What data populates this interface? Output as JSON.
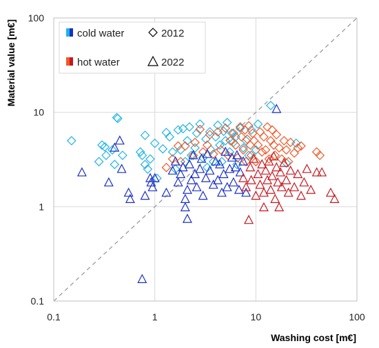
{
  "chart_data": {
    "type": "scatter",
    "title": "",
    "xlabel": "Washing cost [m€]",
    "ylabel": "Material value [m€]",
    "x_scale": "log",
    "y_scale": "log",
    "xlim": [
      0.1,
      100
    ],
    "ylim": [
      0.1,
      100
    ],
    "x_ticks": [
      "0.1",
      "1",
      "10",
      "100"
    ],
    "y_ticks": [
      "0.1",
      "1",
      "10",
      "100"
    ],
    "grid": true,
    "reference_line": "y = x (dashed, grey)",
    "legend_position": "top-left",
    "legend": {
      "color_entries": [
        {
          "label": "cold water",
          "colors": [
            "#1fb4e6",
            "#1a2fc8"
          ]
        },
        {
          "label": "hot water",
          "colors": [
            "#f05a28",
            "#c8161e"
          ]
        }
      ],
      "marker_entries": [
        {
          "label": "2012",
          "marker": "diamond"
        },
        {
          "label": "2022",
          "marker": "triangle"
        }
      ]
    },
    "series": [
      {
        "group": "cold water",
        "year": "2012",
        "marker": "diamond",
        "color": "#1fb4e6",
        "points": [
          [
            0.15,
            5.0
          ],
          [
            0.28,
            3.0
          ],
          [
            0.3,
            4.5
          ],
          [
            0.32,
            4.3
          ],
          [
            0.33,
            3.5
          ],
          [
            0.38,
            4.0
          ],
          [
            0.4,
            2.8
          ],
          [
            0.42,
            8.8
          ],
          [
            0.43,
            8.6
          ],
          [
            0.48,
            3.5
          ],
          [
            0.72,
            3.8
          ],
          [
            0.75,
            3.5
          ],
          [
            0.8,
            2.8
          ],
          [
            0.8,
            5.7
          ],
          [
            0.85,
            2.5
          ],
          [
            0.9,
            3.2
          ],
          [
            1.0,
            4.7
          ],
          [
            1.05,
            2.0
          ],
          [
            1.2,
            4.1
          ],
          [
            1.3,
            6.1
          ],
          [
            1.4,
            5.5
          ],
          [
            1.5,
            3.8
          ],
          [
            1.6,
            2.5
          ],
          [
            1.7,
            6.5
          ],
          [
            1.8,
            4.0
          ],
          [
            1.9,
            6.7
          ],
          [
            2.0,
            3.0
          ],
          [
            2.1,
            5.0
          ],
          [
            2.2,
            7.0
          ],
          [
            2.3,
            3.5
          ],
          [
            2.5,
            4.2
          ],
          [
            2.6,
            6.0
          ],
          [
            2.8,
            7.5
          ],
          [
            3.0,
            3.3
          ],
          [
            3.2,
            5.2
          ],
          [
            3.3,
            2.6
          ],
          [
            3.5,
            6.2
          ],
          [
            3.6,
            4.0
          ],
          [
            3.8,
            3.0
          ],
          [
            4.0,
            5.5
          ],
          [
            4.2,
            7.3
          ],
          [
            4.4,
            4.5
          ],
          [
            4.6,
            3.0
          ],
          [
            4.8,
            6.3
          ],
          [
            5.0,
            5.0
          ],
          [
            5.2,
            7.8
          ],
          [
            5.5,
            3.8
          ],
          [
            5.8,
            6.0
          ],
          [
            6.0,
            4.8
          ],
          [
            6.3,
            5.5
          ],
          [
            6.5,
            2.8
          ],
          [
            7.0,
            6.8
          ],
          [
            7.5,
            4.2
          ],
          [
            8.0,
            5.0
          ],
          [
            8.5,
            3.5
          ],
          [
            9.0,
            6.5
          ],
          [
            10.0,
            4.0
          ],
          [
            10.5,
            7.5
          ],
          [
            14.0,
            11.8
          ],
          [
            20.0,
            2.9
          ],
          [
            25.0,
            4.7
          ]
        ]
      },
      {
        "group": "hot water",
        "year": "2012",
        "marker": "diamond",
        "color": "#f05a28",
        "points": [
          [
            1.3,
            2.6
          ],
          [
            1.5,
            3.2
          ],
          [
            1.7,
            4.4
          ],
          [
            1.8,
            3.0
          ],
          [
            2.0,
            4.4
          ],
          [
            2.4,
            3.5
          ],
          [
            2.5,
            4.8
          ],
          [
            2.8,
            6.6
          ],
          [
            3.0,
            3.8
          ],
          [
            3.3,
            4.5
          ],
          [
            3.5,
            5.8
          ],
          [
            3.8,
            3.6
          ],
          [
            4.2,
            6.2
          ],
          [
            4.5,
            4.0
          ],
          [
            5.0,
            6.8
          ],
          [
            5.3,
            3.5
          ],
          [
            5.6,
            5.0
          ],
          [
            6.0,
            6.0
          ],
          [
            6.3,
            4.5
          ],
          [
            6.6,
            3.3
          ],
          [
            7.0,
            7.0
          ],
          [
            7.2,
            5.5
          ],
          [
            7.5,
            4.0
          ],
          [
            7.8,
            6.5
          ],
          [
            8.0,
            3.0
          ],
          [
            8.2,
            5.2
          ],
          [
            8.5,
            7.2
          ],
          [
            8.8,
            4.5
          ],
          [
            9.0,
            3.5
          ],
          [
            9.3,
            6.0
          ],
          [
            9.6,
            5.0
          ],
          [
            10.0,
            3.0
          ],
          [
            10.5,
            4.5
          ],
          [
            11.0,
            6.2
          ],
          [
            11.5,
            3.8
          ],
          [
            12.0,
            5.5
          ],
          [
            12.5,
            4.0
          ],
          [
            13.0,
            7.0
          ],
          [
            13.5,
            3.2
          ],
          [
            14.0,
            5.0
          ],
          [
            14.5,
            6.5
          ],
          [
            15.0,
            4.5
          ],
          [
            15.5,
            3.5
          ],
          [
            16.0,
            5.8
          ],
          [
            17.0,
            4.2
          ],
          [
            18.0,
            3.2
          ],
          [
            19.0,
            5.0
          ],
          [
            20.0,
            4.0
          ],
          [
            21.0,
            3.0
          ],
          [
            22.0,
            4.8
          ],
          [
            24.0,
            3.7
          ],
          [
            26.0,
            4.2
          ],
          [
            28.0,
            4.4
          ],
          [
            40.0,
            3.8
          ],
          [
            43.0,
            3.5
          ]
        ]
      },
      {
        "group": "cold water",
        "year": "2022",
        "marker": "triangle",
        "color": "#1a2fc8",
        "points": [
          [
            0.19,
            2.3
          ],
          [
            0.35,
            1.8
          ],
          [
            0.4,
            4.2
          ],
          [
            0.45,
            5.0
          ],
          [
            0.47,
            2.5
          ],
          [
            0.55,
            1.4
          ],
          [
            0.57,
            1.2
          ],
          [
            0.75,
            0.17
          ],
          [
            0.8,
            1.3
          ],
          [
            0.9,
            2.0
          ],
          [
            0.92,
            1.8
          ],
          [
            0.95,
            1.6
          ],
          [
            1.0,
            2.0
          ],
          [
            1.3,
            1.4
          ],
          [
            1.5,
            2.4
          ],
          [
            1.6,
            3.0
          ],
          [
            1.7,
            1.8
          ],
          [
            1.8,
            2.2
          ],
          [
            1.9,
            2.6
          ],
          [
            2.0,
            1.2
          ],
          [
            2.0,
            0.98
          ],
          [
            2.1,
            1.5
          ],
          [
            2.1,
            0.74
          ],
          [
            2.2,
            2.8
          ],
          [
            2.3,
            1.9
          ],
          [
            2.4,
            3.5
          ],
          [
            2.5,
            2.2
          ],
          [
            2.6,
            1.6
          ],
          [
            2.8,
            2.5
          ],
          [
            2.9,
            3.2
          ],
          [
            3.0,
            1.3
          ],
          [
            3.2,
            2.0
          ],
          [
            3.3,
            3.6
          ],
          [
            3.5,
            2.4
          ],
          [
            3.8,
            1.7
          ],
          [
            4.0,
            3.0
          ],
          [
            4.2,
            1.9
          ],
          [
            4.4,
            2.8
          ],
          [
            4.6,
            1.4
          ],
          [
            4.8,
            2.2
          ],
          [
            5.0,
            3.8
          ],
          [
            5.2,
            1.6
          ],
          [
            5.5,
            2.5
          ],
          [
            5.8,
            3.3
          ],
          [
            6.0,
            1.8
          ],
          [
            6.3,
            2.6
          ],
          [
            6.5,
            3.5
          ],
          [
            6.8,
            1.5
          ],
          [
            7.0,
            2.3
          ],
          [
            7.5,
            3.0
          ],
          [
            8.0,
            1.4
          ],
          [
            16.0,
            10.8
          ]
        ]
      },
      {
        "group": "hot water",
        "year": "2022",
        "marker": "triangle",
        "color": "#c8161e",
        "points": [
          [
            7.5,
            2.0
          ],
          [
            8.0,
            1.6
          ],
          [
            8.5,
            0.72
          ],
          [
            8.8,
            2.6
          ],
          [
            9.0,
            1.9
          ],
          [
            9.5,
            3.2
          ],
          [
            10.0,
            1.3
          ],
          [
            10.5,
            2.2
          ],
          [
            11.0,
            1.7
          ],
          [
            11.5,
            2.8
          ],
          [
            12.0,
            1.4
          ],
          [
            12.0,
            0.98
          ],
          [
            12.5,
            2.4
          ],
          [
            13.0,
            1.9
          ],
          [
            13.5,
            3.0
          ],
          [
            14.0,
            1.5
          ],
          [
            14.5,
            2.1
          ],
          [
            15.0,
            3.4
          ],
          [
            15.5,
            1.2
          ],
          [
            16.0,
            2.6
          ],
          [
            16.5,
            1.8
          ],
          [
            17.0,
            0.98
          ],
          [
            17.5,
            2.3
          ],
          [
            18.0,
            1.6
          ],
          [
            19.0,
            2.9
          ],
          [
            20.0,
            1.9
          ],
          [
            21.0,
            1.4
          ],
          [
            22.0,
            2.4
          ],
          [
            24.0,
            1.6
          ],
          [
            26.0,
            2.2
          ],
          [
            28.0,
            1.3
          ],
          [
            30.0,
            1.8
          ],
          [
            32.0,
            2.5
          ],
          [
            35.0,
            1.5
          ],
          [
            40.0,
            2.3
          ],
          [
            45.0,
            2.3
          ],
          [
            55.0,
            1.4
          ],
          [
            60.0,
            1.2
          ]
        ]
      }
    ]
  }
}
